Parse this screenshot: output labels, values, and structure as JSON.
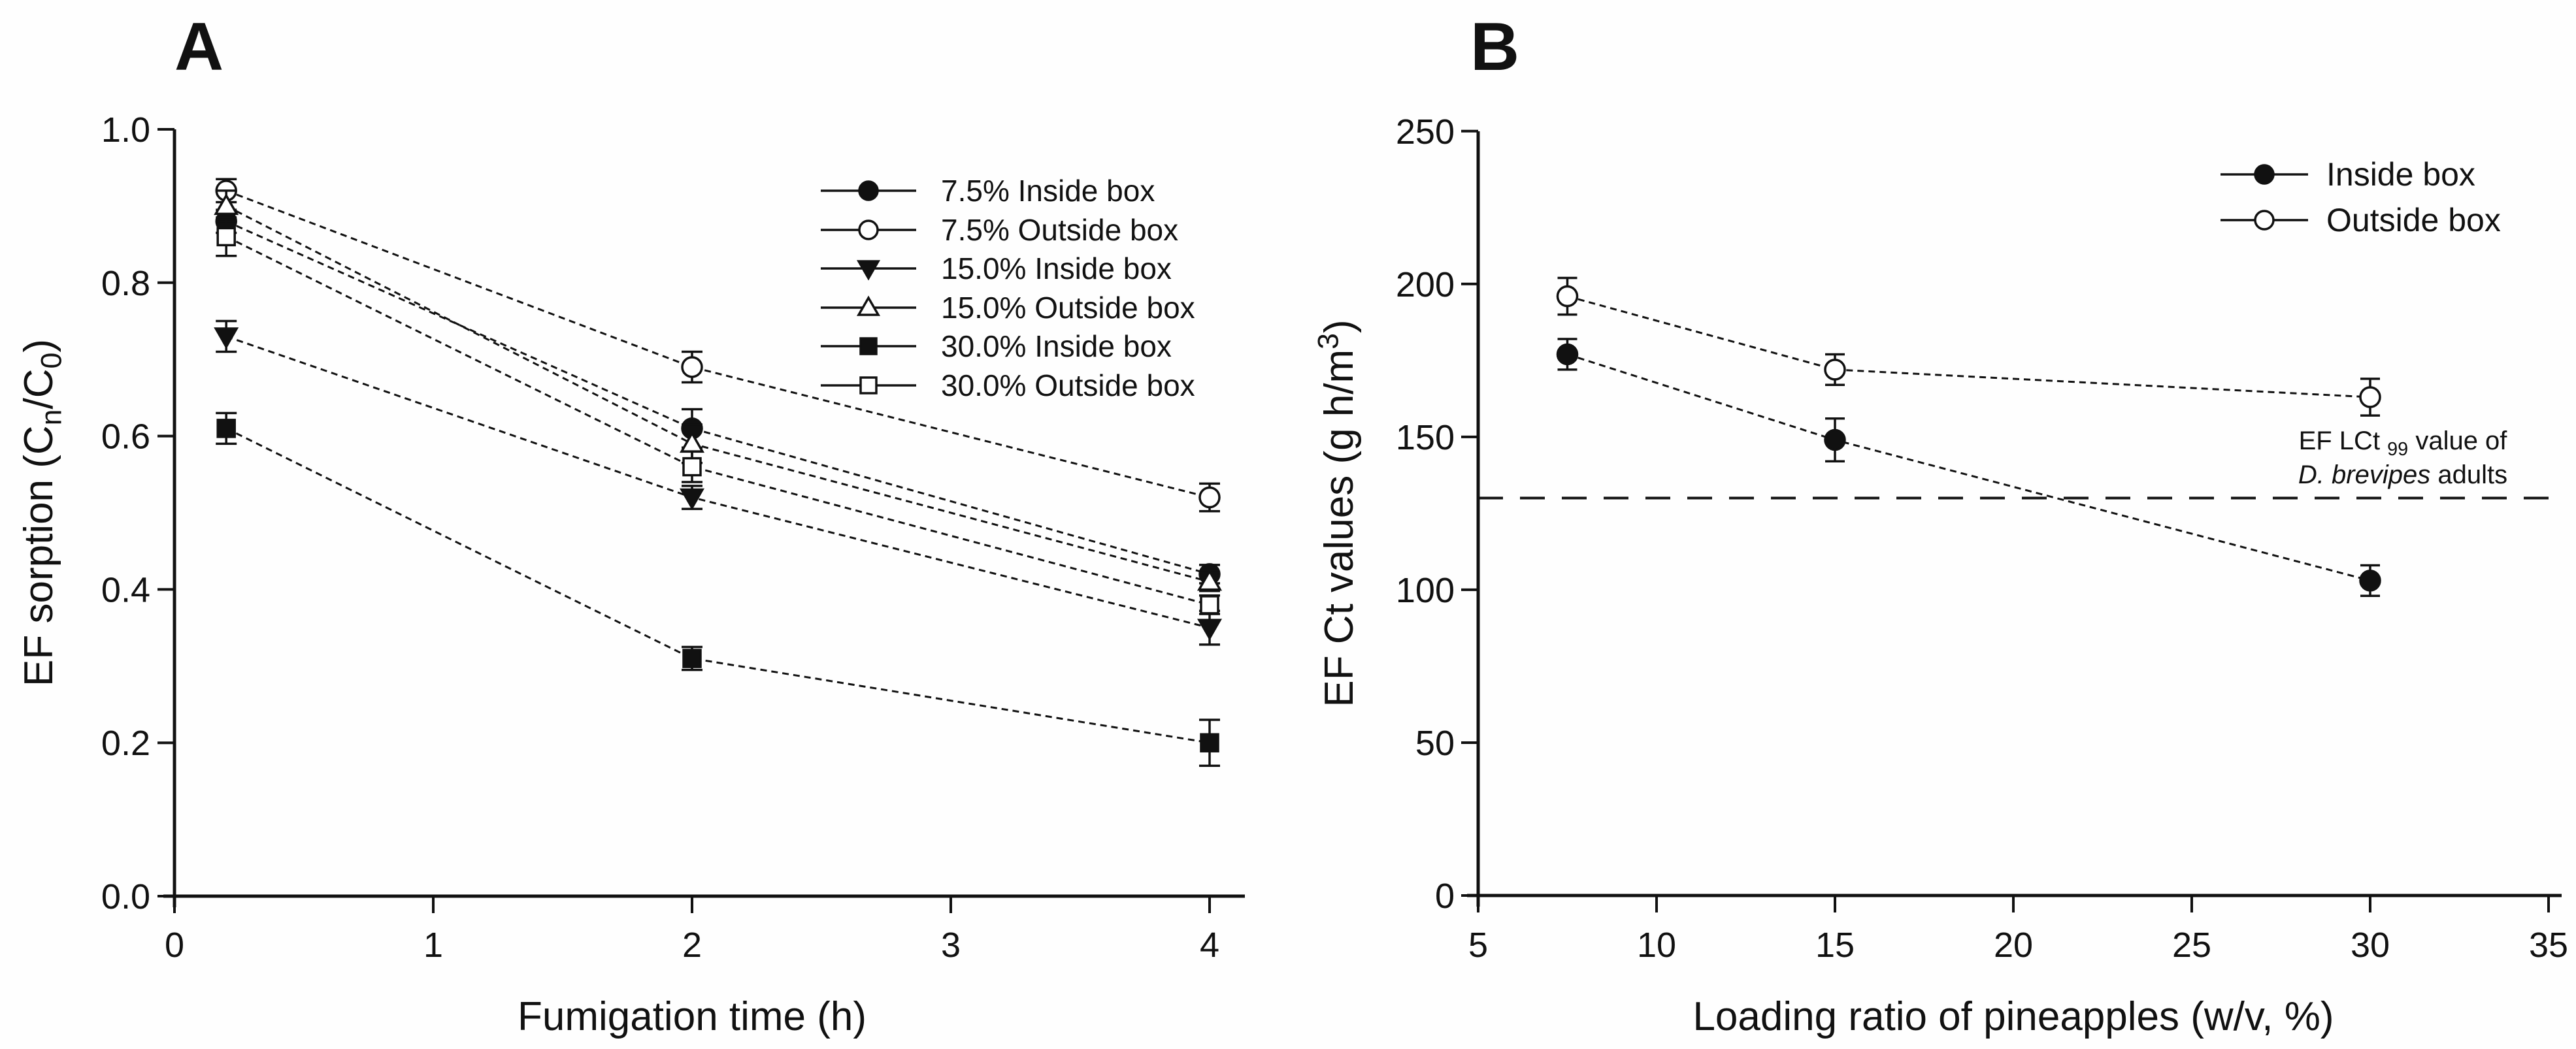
{
  "figure": {
    "background": "#fefefe",
    "ink": "#111111",
    "panel_letters": [
      "A",
      "B"
    ]
  },
  "chart_data": [
    {
      "panel_label": "A",
      "type": "line",
      "x_axis": {
        "label": "Fumigation time (h)",
        "min": 0,
        "max": 4,
        "ticks": [
          0,
          1,
          2,
          3,
          4
        ],
        "tick_labels": [
          "0",
          "1",
          "2",
          "3",
          "4"
        ]
      },
      "y_axis": {
        "label_plain": "EF sorption (Cn/C0)",
        "label_parts": [
          {
            "text": "EF sorption (C"
          },
          {
            "text": "n",
            "sub": true
          },
          {
            "text": "/C"
          },
          {
            "text": "0",
            "sub": true
          },
          {
            "text": ")"
          }
        ],
        "min": 0.0,
        "max": 1.0,
        "ticks": [
          0.0,
          0.2,
          0.4,
          0.6,
          0.8,
          1.0
        ],
        "tick_labels": [
          "0.0",
          "0.2",
          "0.4",
          "0.6",
          "0.8",
          "1.0"
        ]
      },
      "x": [
        0.2,
        2,
        4
      ],
      "series": [
        {
          "name": "7.5% Inside box",
          "marker": "circle-filled",
          "values": [
            0.88,
            0.61,
            0.42
          ],
          "errors": [
            0.015,
            0.025,
            0.012
          ]
        },
        {
          "name": "7.5% Outside box",
          "marker": "circle-open",
          "values": [
            0.92,
            0.69,
            0.52
          ],
          "errors": [
            0.015,
            0.02,
            0.018
          ]
        },
        {
          "name": "15.0% Inside box",
          "marker": "triangle-down-filled",
          "values": [
            0.73,
            0.52,
            0.35
          ],
          "errors": [
            0.02,
            0.015,
            0.022
          ]
        },
        {
          "name": "15.0% Outside box",
          "marker": "triangle-up-open",
          "values": [
            0.9,
            0.59,
            0.41
          ],
          "errors": [
            0.02,
            0.025,
            0.012
          ]
        },
        {
          "name": "30.0% Inside box",
          "marker": "square-filled",
          "values": [
            0.61,
            0.31,
            0.2
          ],
          "errors": [
            0.02,
            0.015,
            0.03
          ]
        },
        {
          "name": "30.0% Outside box",
          "marker": "square-open",
          "values": [
            0.86,
            0.56,
            0.38
          ],
          "errors": [
            0.025,
            0.02,
            0.012
          ]
        }
      ],
      "legend_position": "upper-right"
    },
    {
      "panel_label": "B",
      "type": "line",
      "x_axis": {
        "label": "Loading ratio of pineapples (w/v, %)",
        "min": 5,
        "max": 35,
        "ticks": [
          5,
          10,
          15,
          20,
          25,
          30,
          35
        ],
        "tick_labels": [
          "5",
          "10",
          "15",
          "20",
          "25",
          "30",
          "35"
        ]
      },
      "y_axis": {
        "label_plain": "EF Ct values (g h/m3)",
        "label_parts": [
          {
            "text": "EF Ct values (g h/m"
          },
          {
            "text": "3",
            "sup": true
          },
          {
            "text": ")"
          }
        ],
        "min": 0,
        "max": 250,
        "ticks": [
          0,
          50,
          100,
          150,
          200,
          250
        ],
        "tick_labels": [
          "0",
          "50",
          "100",
          "150",
          "200",
          "250"
        ]
      },
      "x": [
        7.5,
        15,
        30
      ],
      "series": [
        {
          "name": "Inside box",
          "marker": "circle-filled",
          "values": [
            177,
            149,
            103
          ],
          "errors": [
            5,
            7,
            5
          ]
        },
        {
          "name": "Outside box",
          "marker": "circle-open",
          "values": [
            196,
            172,
            163
          ],
          "errors": [
            6,
            5,
            6
          ]
        }
      ],
      "legend_position": "upper-right",
      "ref_line": {
        "value": 130,
        "style": "dashed",
        "label_plain": [
          "EF LCt 99 value of",
          "D. brevipes adults"
        ],
        "label_parts_lines": [
          [
            {
              "text": "EF LCt "
            },
            {
              "text": "99",
              "sub": true
            },
            {
              "text": " value of"
            }
          ],
          [
            {
              "text": "D. brevipes",
              "italic": true
            },
            {
              "text": " adults"
            }
          ]
        ]
      }
    }
  ]
}
